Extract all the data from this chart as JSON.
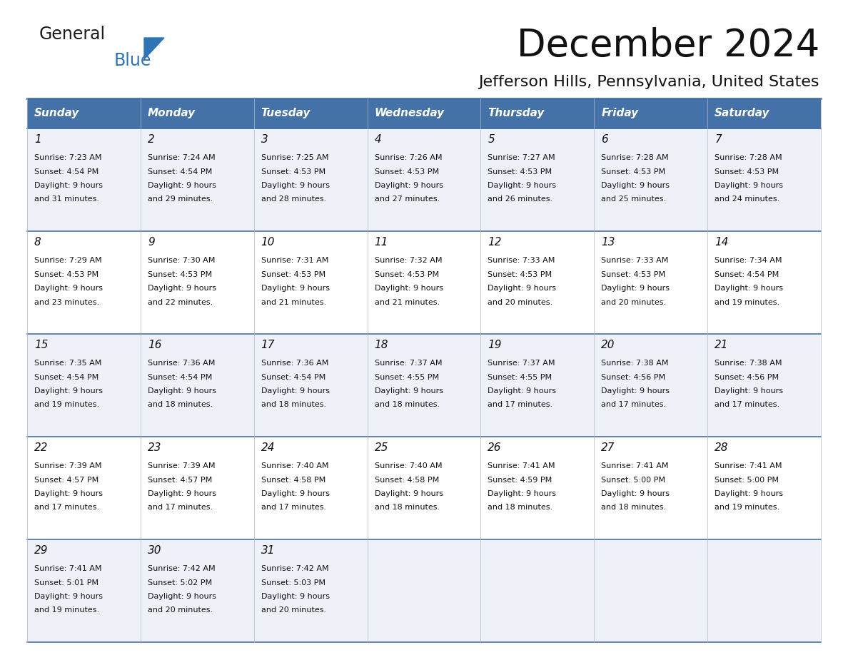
{
  "title": "December 2024",
  "subtitle": "Jefferson Hills, Pennsylvania, United States",
  "header_bg_color": "#4472a8",
  "header_text_color": "#ffffff",
  "grid_color": "#4472a8",
  "days_of_week": [
    "Sunday",
    "Monday",
    "Tuesday",
    "Wednesday",
    "Thursday",
    "Friday",
    "Saturday"
  ],
  "calendar_data": [
    [
      {
        "day": "1",
        "sunrise": "7:23 AM",
        "sunset": "4:54 PM",
        "daylight_hrs": "9 hours",
        "daylight_min": "and 31 minutes."
      },
      {
        "day": "2",
        "sunrise": "7:24 AM",
        "sunset": "4:54 PM",
        "daylight_hrs": "9 hours",
        "daylight_min": "and 29 minutes."
      },
      {
        "day": "3",
        "sunrise": "7:25 AM",
        "sunset": "4:53 PM",
        "daylight_hrs": "9 hours",
        "daylight_min": "and 28 minutes."
      },
      {
        "day": "4",
        "sunrise": "7:26 AM",
        "sunset": "4:53 PM",
        "daylight_hrs": "9 hours",
        "daylight_min": "and 27 minutes."
      },
      {
        "day": "5",
        "sunrise": "7:27 AM",
        "sunset": "4:53 PM",
        "daylight_hrs": "9 hours",
        "daylight_min": "and 26 minutes."
      },
      {
        "day": "6",
        "sunrise": "7:28 AM",
        "sunset": "4:53 PM",
        "daylight_hrs": "9 hours",
        "daylight_min": "and 25 minutes."
      },
      {
        "day": "7",
        "sunrise": "7:28 AM",
        "sunset": "4:53 PM",
        "daylight_hrs": "9 hours",
        "daylight_min": "and 24 minutes."
      }
    ],
    [
      {
        "day": "8",
        "sunrise": "7:29 AM",
        "sunset": "4:53 PM",
        "daylight_hrs": "9 hours",
        "daylight_min": "and 23 minutes."
      },
      {
        "day": "9",
        "sunrise": "7:30 AM",
        "sunset": "4:53 PM",
        "daylight_hrs": "9 hours",
        "daylight_min": "and 22 minutes."
      },
      {
        "day": "10",
        "sunrise": "7:31 AM",
        "sunset": "4:53 PM",
        "daylight_hrs": "9 hours",
        "daylight_min": "and 21 minutes."
      },
      {
        "day": "11",
        "sunrise": "7:32 AM",
        "sunset": "4:53 PM",
        "daylight_hrs": "9 hours",
        "daylight_min": "and 21 minutes."
      },
      {
        "day": "12",
        "sunrise": "7:33 AM",
        "sunset": "4:53 PM",
        "daylight_hrs": "9 hours",
        "daylight_min": "and 20 minutes."
      },
      {
        "day": "13",
        "sunrise": "7:33 AM",
        "sunset": "4:53 PM",
        "daylight_hrs": "9 hours",
        "daylight_min": "and 20 minutes."
      },
      {
        "day": "14",
        "sunrise": "7:34 AM",
        "sunset": "4:54 PM",
        "daylight_hrs": "9 hours",
        "daylight_min": "and 19 minutes."
      }
    ],
    [
      {
        "day": "15",
        "sunrise": "7:35 AM",
        "sunset": "4:54 PM",
        "daylight_hrs": "9 hours",
        "daylight_min": "and 19 minutes."
      },
      {
        "day": "16",
        "sunrise": "7:36 AM",
        "sunset": "4:54 PM",
        "daylight_hrs": "9 hours",
        "daylight_min": "and 18 minutes."
      },
      {
        "day": "17",
        "sunrise": "7:36 AM",
        "sunset": "4:54 PM",
        "daylight_hrs": "9 hours",
        "daylight_min": "and 18 minutes."
      },
      {
        "day": "18",
        "sunrise": "7:37 AM",
        "sunset": "4:55 PM",
        "daylight_hrs": "9 hours",
        "daylight_min": "and 18 minutes."
      },
      {
        "day": "19",
        "sunrise": "7:37 AM",
        "sunset": "4:55 PM",
        "daylight_hrs": "9 hours",
        "daylight_min": "and 17 minutes."
      },
      {
        "day": "20",
        "sunrise": "7:38 AM",
        "sunset": "4:56 PM",
        "daylight_hrs": "9 hours",
        "daylight_min": "and 17 minutes."
      },
      {
        "day": "21",
        "sunrise": "7:38 AM",
        "sunset": "4:56 PM",
        "daylight_hrs": "9 hours",
        "daylight_min": "and 17 minutes."
      }
    ],
    [
      {
        "day": "22",
        "sunrise": "7:39 AM",
        "sunset": "4:57 PM",
        "daylight_hrs": "9 hours",
        "daylight_min": "and 17 minutes."
      },
      {
        "day": "23",
        "sunrise": "7:39 AM",
        "sunset": "4:57 PM",
        "daylight_hrs": "9 hours",
        "daylight_min": "and 17 minutes."
      },
      {
        "day": "24",
        "sunrise": "7:40 AM",
        "sunset": "4:58 PM",
        "daylight_hrs": "9 hours",
        "daylight_min": "and 17 minutes."
      },
      {
        "day": "25",
        "sunrise": "7:40 AM",
        "sunset": "4:58 PM",
        "daylight_hrs": "9 hours",
        "daylight_min": "and 18 minutes."
      },
      {
        "day": "26",
        "sunrise": "7:41 AM",
        "sunset": "4:59 PM",
        "daylight_hrs": "9 hours",
        "daylight_min": "and 18 minutes."
      },
      {
        "day": "27",
        "sunrise": "7:41 AM",
        "sunset": "5:00 PM",
        "daylight_hrs": "9 hours",
        "daylight_min": "and 18 minutes."
      },
      {
        "day": "28",
        "sunrise": "7:41 AM",
        "sunset": "5:00 PM",
        "daylight_hrs": "9 hours",
        "daylight_min": "and 19 minutes."
      }
    ],
    [
      {
        "day": "29",
        "sunrise": "7:41 AM",
        "sunset": "5:01 PM",
        "daylight_hrs": "9 hours",
        "daylight_min": "and 19 minutes."
      },
      {
        "day": "30",
        "sunrise": "7:42 AM",
        "sunset": "5:02 PM",
        "daylight_hrs": "9 hours",
        "daylight_min": "and 20 minutes."
      },
      {
        "day": "31",
        "sunrise": "7:42 AM",
        "sunset": "5:03 PM",
        "daylight_hrs": "9 hours",
        "daylight_min": "and 20 minutes."
      },
      null,
      null,
      null,
      null
    ]
  ],
  "logo_general_color": "#1a1a1a",
  "logo_blue_color": "#2e75b6",
  "logo_triangle_color": "#2e75b6",
  "title_fontsize": 38,
  "subtitle_fontsize": 16,
  "header_fontsize": 11,
  "day_num_fontsize": 11,
  "cell_text_fontsize": 8
}
